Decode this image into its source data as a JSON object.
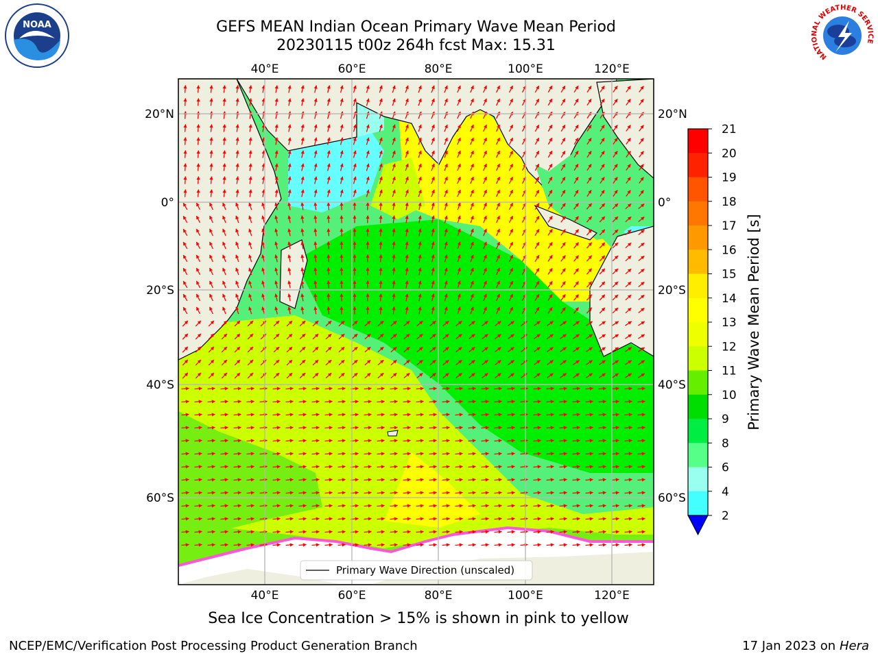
{
  "header": {
    "title_line1": "GEFS MEAN Indian Ocean Primary Wave Mean Period",
    "title_line2": "20230115 t00z 264h fcst   Max: 15.31"
  },
  "logos": {
    "left": "NOAA",
    "right_ring_text": "NATIONAL WEATHER SERVICE"
  },
  "map": {
    "lon_labels": [
      "40°E",
      "60°E",
      "80°E",
      "100°E",
      "120°E"
    ],
    "lat_labels": [
      "20°N",
      "0°",
      "20°S",
      "40°S",
      "60°S"
    ],
    "legend_label": "Primary Wave Direction (unscaled)",
    "ocean_colors": {
      "cyan": "#66ffff",
      "light_green": "#55f07a",
      "green": "#00ee00",
      "lime": "#77ee11",
      "yellow_green": "#ccff00",
      "yellow": "#ffff00",
      "land": "#efefdf",
      "ice": "#ff55dd",
      "arrow": "#ff0000"
    }
  },
  "colorbar": {
    "label": "Primary Wave Mean Period [s]",
    "ticks": [
      "21",
      "20",
      "19",
      "18",
      "17",
      "16",
      "15",
      "14",
      "13",
      "12",
      "11",
      "10",
      "9",
      "8",
      "6",
      "4",
      "2"
    ],
    "colors": [
      "#ff0000",
      "#ff2200",
      "#ff5500",
      "#ff7700",
      "#ff9900",
      "#ffbb00",
      "#ffee00",
      "#ffff00",
      "#eeff00",
      "#ccff00",
      "#66ee00",
      "#00dd00",
      "#00ee44",
      "#55ff88",
      "#99ffee",
      "#44ffff",
      "#00ffff",
      "#0077ff"
    ],
    "under_color": "#0000ff"
  },
  "footer": {
    "subtitle": "Sea Ice Concentration > 15% is shown in pink to yellow",
    "left": "NCEP/EMC/Verification Post Processing Product Generation Branch",
    "right_prefix": "17 Jan 2023 on ",
    "right_italic": "Hera"
  }
}
